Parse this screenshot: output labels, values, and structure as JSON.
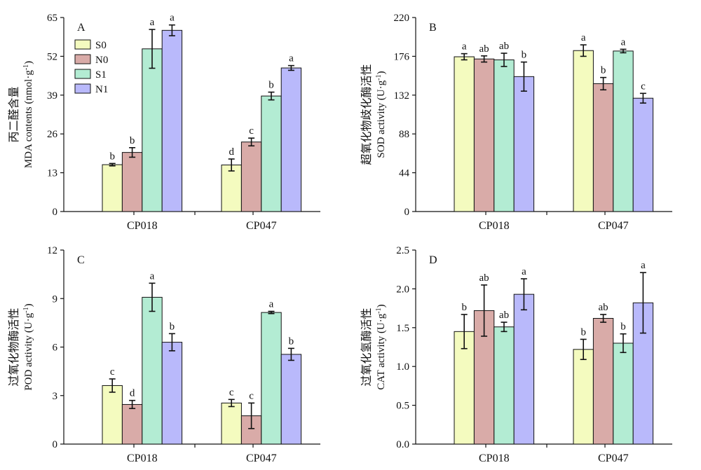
{
  "colors": {
    "S0": "#f4fbbf",
    "N0": "#d9aba8",
    "S1": "#b3ecd3",
    "N1": "#b9b9fb",
    "axis": "#111111"
  },
  "chart_data": [
    {
      "panel": "A",
      "type": "bar",
      "ylabel_cn": "丙二醛含量",
      "ylabel": "MDA contents (nmol·g",
      "ylabel_sup": "-1",
      "ylabel_end": ")",
      "ylim": [
        0,
        65
      ],
      "yticks": [
        "0",
        "13",
        "26",
        "39",
        "52",
        "65"
      ],
      "categories": [
        "CP018",
        "CP047"
      ],
      "legend": {
        "placement": "top-left",
        "entries": [
          "S0",
          "N0",
          "S1",
          "N1"
        ]
      },
      "series": [
        {
          "name": "S0",
          "values": [
            15.7,
            15.6
          ],
          "errors": [
            0.4,
            2.0
          ],
          "letters": [
            "b",
            "d"
          ]
        },
        {
          "name": "N0",
          "values": [
            19.8,
            23.3
          ],
          "errors": [
            1.6,
            1.3
          ],
          "letters": [
            "b",
            "c"
          ]
        },
        {
          "name": "S1",
          "values": [
            54.5,
            38.7
          ],
          "errors": [
            6.5,
            1.3
          ],
          "letters": [
            "a",
            "b"
          ]
        },
        {
          "name": "N1",
          "values": [
            60.7,
            48.1
          ],
          "errors": [
            1.8,
            0.8
          ],
          "letters": [
            "a",
            "a"
          ]
        }
      ]
    },
    {
      "panel": "B",
      "type": "bar",
      "ylabel_cn": "超氧化物歧化酶活性",
      "ylabel": "SOD activity (U·g",
      "ylabel_sup": "-1",
      "ylabel_end": ")",
      "ylim": [
        0,
        220
      ],
      "yticks": [
        "0",
        "44",
        "88",
        "132",
        "176",
        "220"
      ],
      "categories": [
        "CP018",
        "CP047"
      ],
      "series": [
        {
          "name": "S0",
          "values": [
            175.5,
            182.5
          ],
          "errors": [
            3.5,
            6.5
          ],
          "letters": [
            "a",
            "a"
          ]
        },
        {
          "name": "N0",
          "values": [
            173.0,
            145.0
          ],
          "errors": [
            3.5,
            7.0
          ],
          "letters": [
            "ab",
            "b"
          ]
        },
        {
          "name": "S1",
          "values": [
            172.0,
            182.0
          ],
          "errors": [
            7.5,
            2.0
          ],
          "letters": [
            "ab",
            "a"
          ]
        },
        {
          "name": "N1",
          "values": [
            153.0,
            128.5
          ],
          "errors": [
            16.5,
            5.5
          ],
          "letters": [
            "b",
            "c"
          ]
        }
      ]
    },
    {
      "panel": "C",
      "type": "bar",
      "ylabel_cn": "过氧化物酶活性",
      "ylabel": "POD activity (U·g",
      "ylabel_sup": "-1",
      "ylabel_end": ")",
      "ylim": [
        0,
        12
      ],
      "yticks": [
        "0",
        "3",
        "6",
        "9",
        "12"
      ],
      "categories": [
        "CP018",
        "CP047"
      ],
      "series": [
        {
          "name": "S0",
          "values": [
            3.62,
            2.54
          ],
          "errors": [
            0.41,
            0.22
          ],
          "letters": [
            "c",
            "c"
          ]
        },
        {
          "name": "N0",
          "values": [
            2.45,
            1.75
          ],
          "errors": [
            0.25,
            0.79
          ],
          "letters": [
            "d",
            "c"
          ]
        },
        {
          "name": "S1",
          "values": [
            9.08,
            8.14
          ],
          "errors": [
            0.87,
            0.07
          ],
          "letters": [
            "a",
            "a"
          ]
        },
        {
          "name": "N1",
          "values": [
            6.3,
            5.55
          ],
          "errors": [
            0.53,
            0.37
          ],
          "letters": [
            "b",
            "b"
          ]
        }
      ]
    },
    {
      "panel": "D",
      "type": "bar",
      "ylabel_cn": "过氧化氢酶活性",
      "ylabel": "CAT activity (U·g",
      "ylabel_sup": "-1",
      "ylabel_end": ")",
      "ylim": [
        0,
        2.5
      ],
      "yticks": [
        "0.0",
        "0.5",
        "1.0",
        "1.5",
        "2.0",
        "2.5"
      ],
      "categories": [
        "CP018",
        "CP047"
      ],
      "series": [
        {
          "name": "S0",
          "values": [
            1.45,
            1.22
          ],
          "errors": [
            0.22,
            0.13
          ],
          "letters": [
            "b",
            "b"
          ]
        },
        {
          "name": "N0",
          "values": [
            1.72,
            1.62
          ],
          "errors": [
            0.33,
            0.05
          ],
          "letters": [
            "ab",
            "ab"
          ]
        },
        {
          "name": "S1",
          "values": [
            1.51,
            1.3
          ],
          "errors": [
            0.06,
            0.12
          ],
          "letters": [
            "ab",
            "b"
          ]
        },
        {
          "name": "N1",
          "values": [
            1.93,
            1.82
          ],
          "errors": [
            0.2,
            0.39
          ],
          "letters": [
            "a",
            "a"
          ]
        }
      ]
    }
  ]
}
